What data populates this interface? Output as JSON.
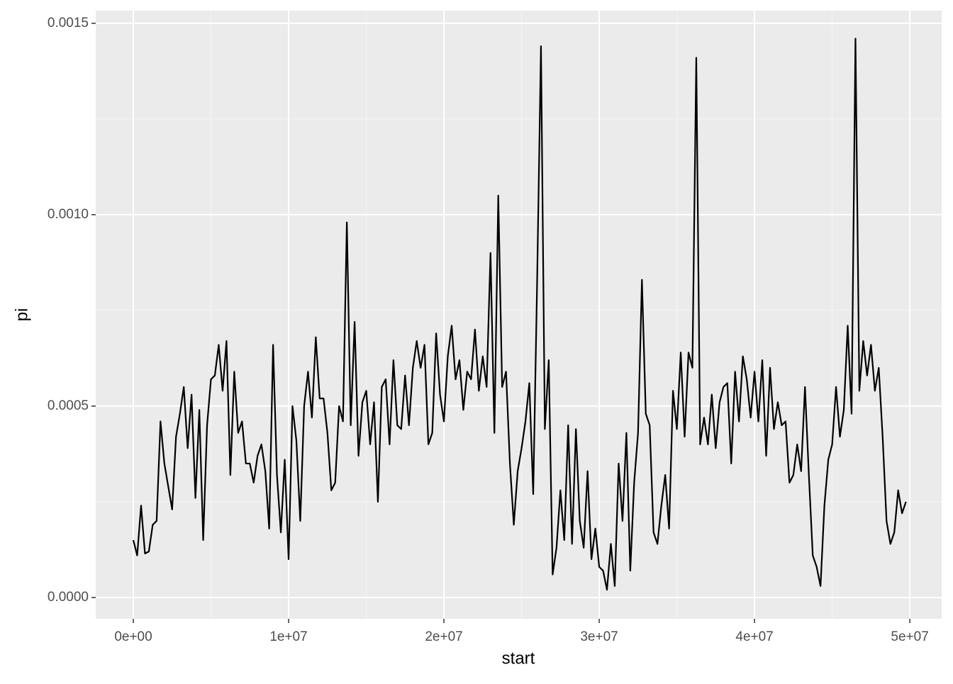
{
  "chart_data": {
    "type": "line",
    "x_label": "start",
    "y_label": "pi",
    "xlim": [
      -2420000,
      52050000
    ],
    "ylim": [
      -5.56e-05,
      0.001533
    ],
    "xticks": [
      {
        "value": 0,
        "label": "0e+00"
      },
      {
        "value": 10000000,
        "label": "1e+07"
      },
      {
        "value": 20000000,
        "label": "2e+07"
      },
      {
        "value": 30000000,
        "label": "3e+07"
      },
      {
        "value": 40000000,
        "label": "4e+07"
      },
      {
        "value": 50000000,
        "label": "5e+07"
      }
    ],
    "yticks": [
      {
        "value": 0,
        "label": "0.0000"
      },
      {
        "value": 0.0005,
        "label": "0.0005"
      },
      {
        "value": 0.001,
        "label": "0.0010"
      },
      {
        "value": 0.0015,
        "label": "0.0015"
      }
    ],
    "grid": true,
    "series": [
      {
        "color": "#000000",
        "x": [
          0,
          250000,
          500000,
          750000,
          1000000,
          1250000,
          1500000,
          1750000,
          2000000,
          2250000,
          2500000,
          2750000,
          3000000,
          3250000,
          3500000,
          3750000,
          4000000,
          4250000,
          4500000,
          4750000,
          5000000,
          5250000,
          5500000,
          5750000,
          6000000,
          6250000,
          6500000,
          6750000,
          7000000,
          7250000,
          7500000,
          7750000,
          8000000,
          8250000,
          8500000,
          8750000,
          9000000,
          9250000,
          9500000,
          9750000,
          10000000,
          10250000,
          10500000,
          10750000,
          11000000,
          11250000,
          11500000,
          11750000,
          12000000,
          12250000,
          12500000,
          12750000,
          13000000,
          13250000,
          13500000,
          13750000,
          14000000,
          14250000,
          14500000,
          14750000,
          15000000,
          15250000,
          15500000,
          15750000,
          16000000,
          16250000,
          16500000,
          16750000,
          17000000,
          17250000,
          17500000,
          17750000,
          18000000,
          18250000,
          18500000,
          18750000,
          19000000,
          19250000,
          19500000,
          19750000,
          20000000,
          20250000,
          20500000,
          20750000,
          21000000,
          21250000,
          21500000,
          21750000,
          22000000,
          22250000,
          22500000,
          22750000,
          23000000,
          23250000,
          23500000,
          23750000,
          24000000,
          24250000,
          24500000,
          24750000,
          25000000,
          25250000,
          25500000,
          25750000,
          26000000,
          26250000,
          26500000,
          26750000,
          27000000,
          27250000,
          27500000,
          27750000,
          28000000,
          28250000,
          28500000,
          28750000,
          29000000,
          29250000,
          29500000,
          29750000,
          30000000,
          30250000,
          30500000,
          30750000,
          31000000,
          31250000,
          31500000,
          31750000,
          32000000,
          32250000,
          32500000,
          32750000,
          33000000,
          33250000,
          33500000,
          33750000,
          34000000,
          34250000,
          34500000,
          34750000,
          35000000,
          35250000,
          35500000,
          35750000,
          36000000,
          36250000,
          36500000,
          36750000,
          37000000,
          37250000,
          37500000,
          37750000,
          38000000,
          38250000,
          38500000,
          38750000,
          39000000,
          39250000,
          39500000,
          39750000,
          40000000,
          40250000,
          40500000,
          40750000,
          41000000,
          41250000,
          41500000,
          41750000,
          42000000,
          42250000,
          42500000,
          42750000,
          43000000,
          43250000,
          43500000,
          43750000,
          44000000,
          44250000,
          44500000,
          44750000,
          45000000,
          45250000,
          45500000,
          45750000,
          46000000,
          46250000,
          46500000,
          46750000,
          47000000,
          47250000,
          47500000,
          47750000,
          48000000,
          48250000,
          48500000,
          48750000,
          49000000,
          49250000,
          49500000,
          49750000
        ],
        "values": [
          0.00015,
          0.00011,
          0.00024,
          0.000115,
          0.00012,
          0.00019,
          0.0002,
          0.00046,
          0.00035,
          0.00029,
          0.00023,
          0.00042,
          0.00048,
          0.00055,
          0.00039,
          0.00053,
          0.00026,
          0.00049,
          0.00015,
          0.00045,
          0.00057,
          0.00058,
          0.00066,
          0.00054,
          0.00067,
          0.00032,
          0.00059,
          0.00043,
          0.00046,
          0.00035,
          0.00035,
          0.0003,
          0.00037,
          0.0004,
          0.00033,
          0.00018,
          0.00066,
          0.00032,
          0.00017,
          0.00036,
          0.0001,
          0.0005,
          0.00041,
          0.0002,
          0.0005,
          0.00059,
          0.00047,
          0.00068,
          0.00052,
          0.00052,
          0.00043,
          0.00028,
          0.0003,
          0.0005,
          0.00046,
          0.00098,
          0.00045,
          0.00072,
          0.00037,
          0.00051,
          0.00054,
          0.0004,
          0.00051,
          0.00025,
          0.00055,
          0.00057,
          0.0004,
          0.00062,
          0.00045,
          0.00044,
          0.00058,
          0.00045,
          0.0006,
          0.00067,
          0.0006,
          0.00066,
          0.0004,
          0.00043,
          0.00069,
          0.00053,
          0.00046,
          0.00063,
          0.00071,
          0.00057,
          0.00062,
          0.00049,
          0.00059,
          0.00057,
          0.0007,
          0.00054,
          0.00063,
          0.00055,
          0.0009,
          0.00043,
          0.00105,
          0.00055,
          0.00059,
          0.00035,
          0.00019,
          0.00033,
          0.00039,
          0.00046,
          0.00056,
          0.00027,
          0.00082,
          0.00144,
          0.00044,
          0.00062,
          6e-05,
          0.00013,
          0.00028,
          0.00015,
          0.00045,
          0.00014,
          0.00044,
          0.0002,
          0.00013,
          0.00033,
          0.0001,
          0.00018,
          8e-05,
          7e-05,
          2e-05,
          0.00014,
          3e-05,
          0.00035,
          0.0002,
          0.00043,
          7e-05,
          0.0003,
          0.00043,
          0.00083,
          0.00048,
          0.00045,
          0.00017,
          0.00014,
          0.00024,
          0.00032,
          0.00018,
          0.00054,
          0.00044,
          0.00064,
          0.00042,
          0.00064,
          0.0006,
          0.00141,
          0.0004,
          0.00047,
          0.0004,
          0.00053,
          0.00039,
          0.00051,
          0.00055,
          0.00056,
          0.00035,
          0.00059,
          0.00046,
          0.00063,
          0.00057,
          0.00047,
          0.00059,
          0.00046,
          0.00062,
          0.00037,
          0.0006,
          0.00044,
          0.00051,
          0.00045,
          0.00046,
          0.0003,
          0.00032,
          0.0004,
          0.00033,
          0.00055,
          0.00032,
          0.00011,
          8e-05,
          3e-05,
          0.00024,
          0.00036,
          0.0004,
          0.00055,
          0.00042,
          0.00049,
          0.00071,
          0.00048,
          0.00146,
          0.00054,
          0.00067,
          0.00058,
          0.00066,
          0.00054,
          0.0006,
          0.00042,
          0.0002,
          0.00014,
          0.00017,
          0.00028,
          0.00022,
          0.00025
        ]
      }
    ]
  }
}
